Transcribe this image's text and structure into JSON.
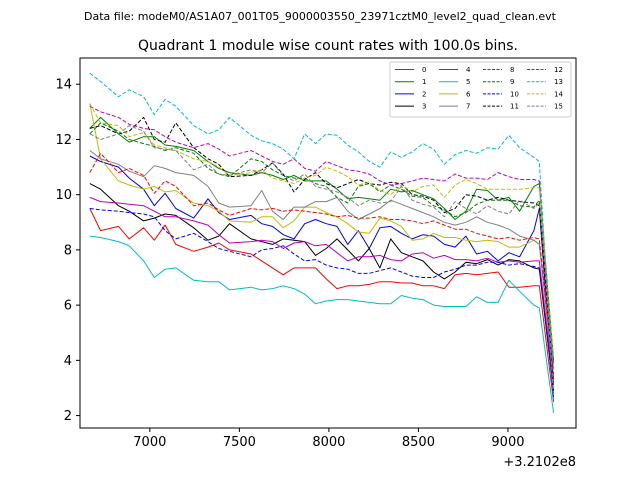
{
  "chart_data": {
    "type": "line",
    "suptitle": "Data file: modeM0/AS1A07_001T05_9000003550_23971cztM0_level2_quad_clean.evt",
    "title": "Quadrant 1 module wise count rates with 100.0s bins.",
    "xlabel": "",
    "ylabel": "",
    "x_offset_label": "+3.2102e8",
    "xlim": [
      6610,
      9380
    ],
    "ylim": [
      1.55,
      14.95
    ],
    "xticks": [
      7000,
      7500,
      8000,
      8500,
      9000
    ],
    "xtick_labels": [
      "7000",
      "7500",
      "8000",
      "8500",
      "9000"
    ],
    "yticks": [
      2,
      4,
      6,
      8,
      10,
      12,
      14
    ],
    "ytick_labels": [
      "2",
      "4",
      "6",
      "8",
      "10",
      "12",
      "14"
    ],
    "legend_position": "upper right",
    "legend_columns": 4,
    "x": [
      6665,
      6725,
      6825,
      6885,
      6965,
      7025,
      7085,
      7145,
      7245,
      7325,
      7385,
      7445,
      7565,
      7625,
      7685,
      7745,
      7805,
      7865,
      7925,
      7985,
      8045,
      8105,
      8165,
      8225,
      8285,
      8345,
      8405,
      8465,
      8525,
      8585,
      8645,
      8705,
      8765,
      8825,
      8885,
      8945,
      9005,
      9065,
      9145,
      9175,
      9255
    ],
    "series": [
      {
        "name": "0",
        "color": "#ff0000",
        "dash": "solid",
        "values": [
          9.5,
          8.7,
          8.85,
          8.4,
          8.8,
          8.35,
          8.9,
          8.2,
          7.95,
          8.1,
          8.25,
          8.0,
          7.85,
          7.6,
          7.35,
          7.1,
          7.35,
          7.35,
          7.35,
          6.95,
          6.6,
          6.7,
          6.7,
          6.75,
          6.85,
          6.85,
          6.8,
          6.8,
          6.7,
          6.7,
          6.6,
          7.1,
          7.15,
          7.1,
          7.15,
          7.2,
          6.65,
          6.65,
          6.7,
          6.7,
          2.5
        ]
      },
      {
        "name": "1",
        "color": "#008000",
        "dash": "solid",
        "values": [
          12.4,
          12.8,
          12.2,
          11.9,
          12.1,
          12.1,
          11.8,
          11.75,
          11.6,
          11.2,
          10.95,
          10.8,
          10.7,
          10.8,
          10.7,
          10.55,
          10.7,
          10.5,
          10.5,
          10.5,
          10.2,
          9.85,
          9.9,
          9.85,
          9.8,
          10.2,
          10.1,
          10.15,
          10.0,
          9.85,
          9.5,
          9.1,
          9.4,
          10.2,
          10.15,
          9.8,
          9.9,
          9.4,
          10.3,
          10.4,
          3.9
        ]
      },
      {
        "name": "2",
        "color": "#0000ff",
        "dash": "solid",
        "values": [
          11.4,
          11.2,
          11.0,
          10.6,
          10.2,
          9.6,
          10.05,
          9.5,
          9.15,
          9.85,
          9.35,
          9.1,
          9.25,
          8.95,
          8.85,
          8.55,
          8.4,
          8.95,
          9.1,
          8.95,
          8.85,
          8.2,
          8.7,
          8.05,
          8.8,
          8.85,
          8.6,
          8.4,
          8.55,
          8.5,
          8.2,
          8.1,
          8.5,
          7.85,
          7.95,
          7.6,
          7.9,
          7.75,
          8.7,
          9.5,
          2.6
        ]
      },
      {
        "name": "3",
        "color": "#000000",
        "dash": "solid",
        "values": [
          10.4,
          10.2,
          9.6,
          9.4,
          9.05,
          9.15,
          9.3,
          9.25,
          8.8,
          8.35,
          8.5,
          8.95,
          8.4,
          8.3,
          8.2,
          8.4,
          8.35,
          8.3,
          7.8,
          8.05,
          8.4,
          8.0,
          7.6,
          8.05,
          7.35,
          8.4,
          7.9,
          7.75,
          7.6,
          7.2,
          6.95,
          7.2,
          7.55,
          7.5,
          7.65,
          7.45,
          7.65,
          7.6,
          7.35,
          7.3,
          2.9
        ]
      },
      {
        "name": "4",
        "color": "#bf00bf",
        "dash": "solid",
        "values": [
          9.9,
          9.75,
          9.7,
          9.65,
          9.6,
          9.4,
          9.2,
          9.2,
          9.05,
          8.9,
          8.55,
          8.25,
          8.3,
          8.35,
          8.3,
          8.05,
          8.25,
          8.3,
          8.15,
          8.2,
          7.9,
          7.6,
          7.75,
          7.75,
          7.8,
          7.65,
          7.6,
          7.85,
          7.9,
          7.7,
          7.8,
          7.65,
          7.65,
          7.6,
          7.7,
          7.55,
          7.6,
          7.55,
          7.6,
          7.6,
          3.1
        ]
      },
      {
        "name": "5",
        "color": "#00bfbf",
        "dash": "solid",
        "values": [
          8.5,
          8.45,
          8.3,
          8.15,
          7.6,
          7.0,
          7.3,
          7.35,
          6.9,
          6.85,
          6.85,
          6.55,
          6.65,
          6.55,
          6.6,
          6.7,
          6.6,
          6.4,
          6.05,
          6.15,
          6.2,
          6.2,
          6.15,
          6.1,
          6.05,
          6.05,
          6.35,
          6.25,
          6.2,
          6.0,
          5.95,
          5.95,
          5.95,
          6.3,
          6.1,
          6.1,
          6.9,
          6.5,
          6.0,
          5.9,
          2.1
        ]
      },
      {
        "name": "6",
        "color": "#bfbf00",
        "dash": "solid",
        "values": [
          13.3,
          11.3,
          10.5,
          10.35,
          10.2,
          10.3,
          10.1,
          10.15,
          9.7,
          9.6,
          9.4,
          9.05,
          9.0,
          9.2,
          9.2,
          8.8,
          9.05,
          9.55,
          9.55,
          9.35,
          9.2,
          8.95,
          8.65,
          8.6,
          9.15,
          9.05,
          8.85,
          8.35,
          8.4,
          8.6,
          8.45,
          8.45,
          8.35,
          8.3,
          8.35,
          8.3,
          8.1,
          8.1,
          8.35,
          8.2,
          3.7
        ]
      },
      {
        "name": "7",
        "color": "#808080",
        "dash": "solid",
        "values": [
          11.6,
          11.3,
          11.1,
          10.85,
          10.65,
          11.05,
          10.95,
          10.8,
          10.7,
          10.3,
          9.7,
          9.55,
          9.6,
          10.15,
          9.4,
          9.1,
          9.55,
          9.55,
          9.75,
          9.75,
          9.9,
          9.4,
          9.1,
          9.3,
          9.5,
          9.8,
          9.65,
          9.5,
          9.35,
          9.2,
          9.0,
          8.9,
          9.0,
          9.2,
          9.0,
          8.9,
          8.75,
          8.5,
          8.35,
          8.2,
          3.3
        ]
      },
      {
        "name": "8",
        "color": "#ff0000",
        "dash": "dashed",
        "values": [
          10.8,
          11.5,
          10.8,
          10.95,
          10.7,
          10.05,
          10.5,
          10.3,
          9.6,
          9.7,
          9.45,
          9.25,
          9.5,
          9.45,
          9.5,
          9.4,
          9.45,
          9.4,
          9.35,
          9.3,
          9.2,
          9.25,
          9.15,
          9.15,
          9.2,
          9.1,
          9.1,
          9.05,
          8.95,
          9.05,
          8.9,
          8.75,
          8.75,
          8.6,
          8.5,
          8.4,
          8.45,
          8.35,
          8.45,
          8.4,
          3.5
        ]
      },
      {
        "name": "9",
        "color": "#008000",
        "dash": "dashed",
        "values": [
          12.2,
          12.6,
          12.3,
          12.0,
          11.85,
          11.75,
          11.6,
          11.7,
          11.5,
          10.95,
          10.75,
          10.65,
          11.3,
          11.2,
          10.9,
          10.7,
          10.6,
          10.6,
          10.4,
          10.3,
          9.9,
          9.7,
          10.3,
          10.4,
          10.1,
          10.35,
          10.2,
          9.95,
          9.9,
          9.6,
          9.45,
          9.2,
          9.35,
          9.65,
          9.8,
          9.8,
          9.8,
          9.6,
          9.55,
          9.8,
          4.0
        ]
      },
      {
        "name": "10",
        "color": "#0000ff",
        "dash": "dashed",
        "values": [
          9.5,
          9.45,
          9.4,
          9.35,
          9.3,
          9.2,
          8.7,
          8.4,
          8.6,
          8.3,
          8.05,
          7.95,
          7.75,
          8.0,
          8.05,
          8.15,
          7.85,
          7.6,
          7.65,
          7.45,
          7.35,
          7.3,
          7.15,
          7.15,
          7.25,
          7.35,
          7.2,
          7.05,
          7.0,
          7.0,
          7.2,
          7.3,
          7.45,
          7.45,
          7.55,
          7.55,
          7.45,
          7.5,
          7.4,
          7.35,
          2.8
        ]
      },
      {
        "name": "11",
        "color": "#000000",
        "dash": "dashed",
        "values": [
          12.4,
          12.5,
          12.2,
          12.3,
          12.8,
          12.0,
          11.9,
          12.6,
          11.7,
          11.3,
          11.1,
          10.65,
          10.7,
          10.9,
          11.15,
          10.75,
          10.1,
          10.55,
          10.8,
          10.4,
          10.25,
          10.4,
          10.55,
          10.4,
          10.35,
          10.45,
          10.4,
          10.0,
          9.95,
          9.8,
          9.35,
          9.5,
          10.0,
          9.95,
          9.8,
          9.9,
          9.8,
          9.75,
          9.7,
          9.6,
          3.2
        ]
      },
      {
        "name": "12",
        "color": "#bf00bf",
        "dash": "dashed",
        "values": [
          13.2,
          13.0,
          12.8,
          12.55,
          12.4,
          12.35,
          12.1,
          11.9,
          11.7,
          11.85,
          11.65,
          11.4,
          11.6,
          11.4,
          11.2,
          11.1,
          11.3,
          10.95,
          10.85,
          11.2,
          11.05,
          10.9,
          10.85,
          10.75,
          10.5,
          10.35,
          10.4,
          10.5,
          10.6,
          10.55,
          10.5,
          10.75,
          10.6,
          10.6,
          10.55,
          10.8,
          10.65,
          10.55,
          10.55,
          10.5,
          3.3
        ]
      },
      {
        "name": "13",
        "color": "#00bfbf",
        "dash": "dashed",
        "values": [
          14.4,
          14.1,
          13.55,
          13.8,
          13.55,
          12.9,
          13.45,
          13.2,
          12.5,
          12.2,
          12.35,
          12.8,
          12.15,
          11.95,
          11.85,
          11.65,
          11.3,
          12.2,
          11.85,
          12.2,
          12.15,
          11.8,
          11.55,
          11.2,
          11.0,
          11.55,
          11.35,
          11.55,
          11.85,
          11.65,
          11.1,
          11.45,
          11.6,
          11.5,
          11.7,
          11.65,
          12.15,
          11.7,
          11.35,
          11.2,
          2.6
        ]
      },
      {
        "name": "14",
        "color": "#bfbf00",
        "dash": "dashed",
        "values": [
          13.3,
          12.6,
          12.5,
          12.1,
          12.25,
          11.8,
          11.7,
          11.6,
          11.3,
          11.2,
          11.0,
          10.7,
          10.8,
          10.9,
          10.6,
          10.5,
          10.4,
          10.6,
          10.7,
          11.0,
          10.85,
          10.65,
          10.35,
          10.45,
          10.15,
          10.0,
          10.35,
          10.1,
          10.3,
          10.35,
          9.9,
          10.35,
          10.55,
          10.4,
          10.2,
          10.2,
          10.2,
          10.2,
          10.25,
          10.25,
          4.1
        ]
      },
      {
        "name": "15",
        "color": "#808080",
        "dash": "dashed",
        "values": [
          12.2,
          12.0,
          12.2,
          12.5,
          12.3,
          11.7,
          11.65,
          11.6,
          10.9,
          11.1,
          10.75,
          10.7,
          10.9,
          10.8,
          11.15,
          10.7,
          10.5,
          10.75,
          10.3,
          10.2,
          10.1,
          9.9,
          9.6,
          9.8,
          9.7,
          9.75,
          10.3,
          9.8,
          9.65,
          9.55,
          9.2,
          9.75,
          9.5,
          9.3,
          9.6,
          9.4,
          9.3,
          9.8,
          9.5,
          9.7,
          3.8
        ]
      }
    ]
  }
}
